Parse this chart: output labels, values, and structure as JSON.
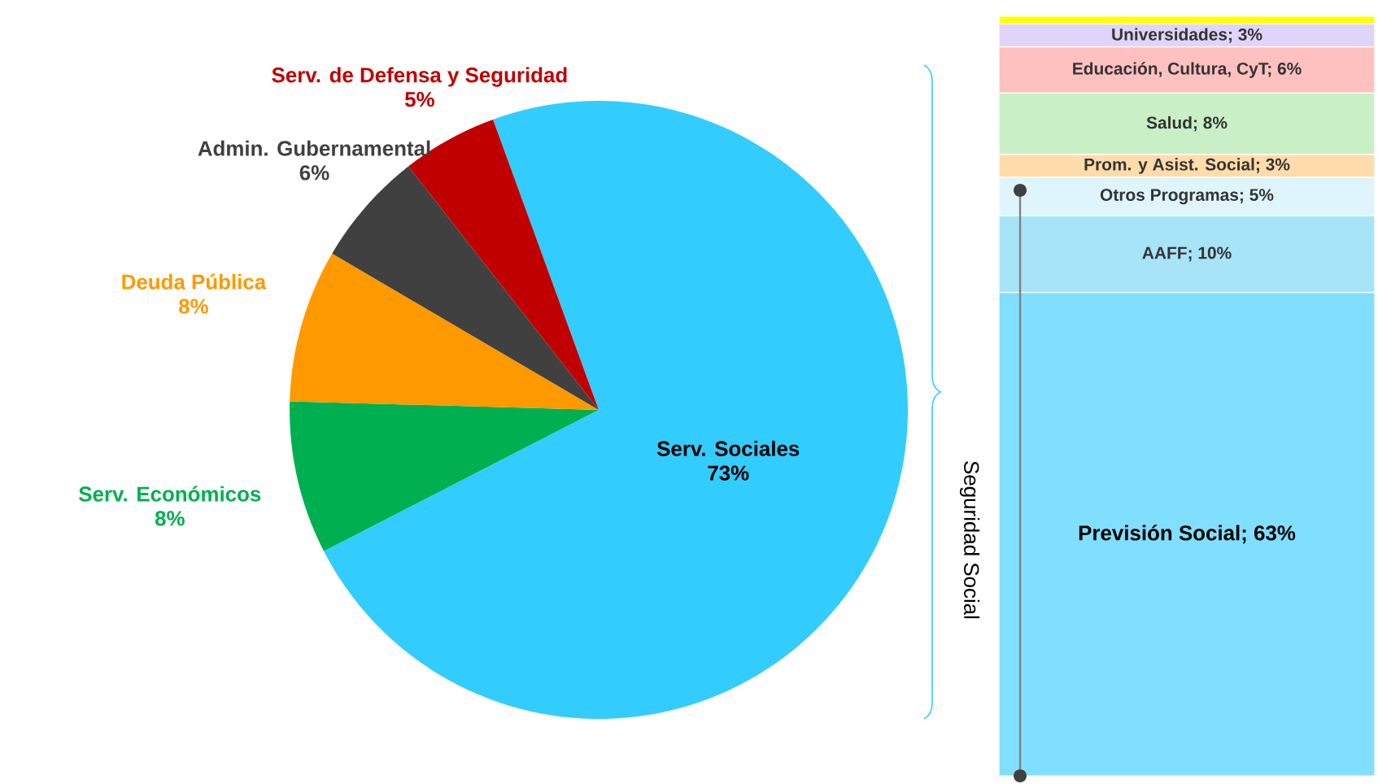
{
  "chart_data": [
    {
      "type": "pie",
      "categories": [
        "Serv. Sociales",
        "Serv. Económicos",
        "Deuda Pública",
        "Admin. Gubernamental",
        "Serv. de Defensa y Seguridad"
      ],
      "values": [
        73,
        8,
        8,
        6,
        5
      ],
      "colors": [
        "#33ccff",
        "#00b050",
        "#ff9900",
        "#404040",
        "#c00000"
      ],
      "value_labels": [
        "73%",
        "8%",
        "8%",
        "6%",
        "5%"
      ]
    },
    {
      "type": "bar",
      "stacked": true,
      "categories": [
        null
      ],
      "tick_labels": false,
      "annotations": [
        "Seguridad Social"
      ],
      "series": [
        {
          "color": "#80dfff",
          "values": [
            63
          ],
          "value_labels": [
            "Previsión Social; 63%"
          ]
        },
        {
          "color": "#a8e4f8",
          "values": [
            10
          ],
          "value_labels": [
            "AAFF; 10%"
          ]
        },
        {
          "color": "#dff5fd",
          "values": [
            5
          ],
          "value_labels": [
            "Otros Programas; 5%"
          ]
        },
        {
          "color": "#ffdcaa",
          "values": [
            3
          ],
          "value_labels": [
            "Prom. y Asist. Social; 3%"
          ]
        },
        {
          "color": "#c9efc6",
          "values": [
            8
          ],
          "value_labels": [
            "Salud; 8%"
          ]
        },
        {
          "color": "#ffc0c0",
          "values": [
            6
          ],
          "value_labels": [
            "Educación, Cultura, CyT; 6%"
          ]
        },
        {
          "color": "#e0d4f8",
          "values": [
            3
          ],
          "value_labels": [
            "Universidades; 3%"
          ]
        },
        {
          "color": "#ffff00",
          "values": [
            1
          ]
        }
      ]
    }
  ]
}
